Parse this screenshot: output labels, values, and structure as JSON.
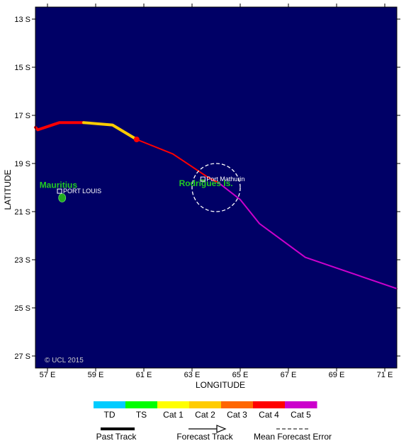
{
  "map": {
    "lon_range": [
      56.5,
      71.5
    ],
    "lat_range": [
      -12.5,
      -27.5
    ],
    "ocean_color": "#000066",
    "xlabel": "LONGITUDE",
    "ylabel": "LATITUDE",
    "copyright": "© UCL 2015",
    "lat_ticks": [
      {
        "value": -13,
        "label": "13 S"
      },
      {
        "value": -15,
        "label": "15 S"
      },
      {
        "value": -17,
        "label": "17 S"
      },
      {
        "value": -19,
        "label": "19 S"
      },
      {
        "value": -21,
        "label": "21 S"
      },
      {
        "value": -23,
        "label": "23 S"
      },
      {
        "value": -25,
        "label": "25 S"
      },
      {
        "value": -27,
        "label": "27 S"
      }
    ],
    "lon_ticks": [
      {
        "value": 57,
        "label": "57 E"
      },
      {
        "value": 59,
        "label": "59 E"
      },
      {
        "value": 61,
        "label": "61 E"
      },
      {
        "value": 63,
        "label": "63 E"
      },
      {
        "value": 65,
        "label": "65 E"
      },
      {
        "value": 67,
        "label": "67 E"
      },
      {
        "value": 69,
        "label": "69 E"
      },
      {
        "value": 71,
        "label": "71 E"
      }
    ],
    "islands": [
      {
        "name": "Mauritius",
        "lon": 57.55,
        "lat": -20.25
      },
      {
        "name": "Rodrigues Is.",
        "lon": 63.4,
        "lat": -19.7
      }
    ],
    "places": [
      {
        "name": "PORT LOUIS",
        "lon": 57.5,
        "lat": -20.15
      },
      {
        "name": "Port Mathurin",
        "lon": 63.45,
        "lat": -19.65
      }
    ],
    "track_segments": [
      {
        "category": "Cat 4",
        "color": "#ff0000",
        "points": [
          [
            56.5,
            -17.5
          ],
          [
            56.6,
            -17.6
          ],
          [
            57.5,
            -17.3
          ],
          [
            58.5,
            -17.3
          ]
        ]
      },
      {
        "category": "Cat 2",
        "color": "#ffcc00",
        "points": [
          [
            58.5,
            -17.3
          ],
          [
            59.7,
            -17.4
          ],
          [
            60.7,
            -18.0
          ]
        ]
      },
      {
        "category": "Cat 4",
        "color": "#ff0000",
        "points": [
          [
            60.7,
            -18.0
          ],
          [
            62.2,
            -18.6
          ],
          [
            63.7,
            -19.6
          ],
          [
            64.1,
            -19.8
          ]
        ]
      },
      {
        "category": "Cat 5",
        "color": "#cc00cc",
        "points": [
          [
            64.1,
            -19.8
          ],
          [
            65.0,
            -20.5
          ],
          [
            65.8,
            -21.5
          ],
          [
            67.7,
            -22.9
          ],
          [
            71.5,
            -24.2
          ]
        ]
      }
    ],
    "current_position": {
      "lon": 60.7,
      "lat": -18.0,
      "color": "#ff0000"
    },
    "forecast_error_circle": {
      "lon": 64.0,
      "lat": -20.0,
      "radius_deg_lat": 1.0
    }
  },
  "legend": {
    "categories": [
      {
        "label": "TD",
        "color": "#00ccff"
      },
      {
        "label": "TS",
        "color": "#00ff00"
      },
      {
        "label": "Cat 1",
        "color": "#ffff00"
      },
      {
        "label": "Cat 2",
        "color": "#ffcc00"
      },
      {
        "label": "Cat 3",
        "color": "#ff6600"
      },
      {
        "label": "Cat 4",
        "color": "#ff0000"
      },
      {
        "label": "Cat 5",
        "color": "#cc00cc"
      }
    ],
    "past_track": "Past Track",
    "forecast_track": "Forecast Track",
    "mean_forecast_error": "Mean Forecast Error"
  }
}
